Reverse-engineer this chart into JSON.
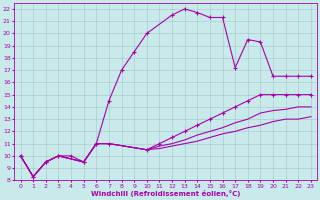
{
  "xlabel": "Windchill (Refroidissement éolien,°C)",
  "bg_color": "#c8eaea",
  "line_color": "#aa00aa",
  "grid_color": "#aacccc",
  "xlim": [
    -0.5,
    23.5
  ],
  "ylim": [
    8,
    22.5
  ],
  "xticks": [
    0,
    1,
    2,
    3,
    4,
    5,
    6,
    7,
    8,
    9,
    10,
    11,
    12,
    13,
    14,
    15,
    16,
    17,
    18,
    19,
    20,
    21,
    22,
    23
  ],
  "yticks": [
    8,
    9,
    10,
    11,
    12,
    13,
    14,
    15,
    16,
    17,
    18,
    19,
    20,
    21,
    22
  ],
  "lines": [
    {
      "x": [
        0,
        1,
        2,
        3,
        4,
        5,
        6,
        7,
        8,
        9,
        10,
        12,
        13,
        14,
        15,
        16,
        17,
        18,
        19,
        20,
        21,
        22,
        23
      ],
      "y": [
        10,
        8.3,
        9.5,
        10,
        10,
        9.5,
        11,
        14.5,
        17,
        18.5,
        20,
        21.5,
        22,
        21.7,
        21.3,
        21.3,
        17.2,
        19.5,
        19.3,
        16.5,
        16.5,
        16.5,
        16.5
      ],
      "marker": true
    },
    {
      "x": [
        0,
        1,
        2,
        3,
        5,
        6,
        7,
        10,
        11,
        12,
        13,
        14,
        15,
        16,
        17,
        18,
        19,
        20,
        21,
        22,
        23
      ],
      "y": [
        10,
        8.3,
        9.5,
        10,
        9.5,
        11,
        11,
        10.5,
        11,
        11.5,
        12,
        12.5,
        13,
        13.5,
        14,
        14.5,
        15,
        15,
        15,
        15,
        15
      ],
      "marker": true
    },
    {
      "x": [
        0,
        1,
        2,
        3,
        5,
        6,
        7,
        10,
        11,
        12,
        13,
        14,
        15,
        16,
        17,
        18,
        19,
        20,
        21,
        22,
        23
      ],
      "y": [
        10,
        8.3,
        9.5,
        10,
        9.5,
        11,
        11,
        10.5,
        10.8,
        11,
        11.3,
        11.7,
        12,
        12.3,
        12.7,
        13,
        13.5,
        13.7,
        13.8,
        14,
        14
      ],
      "marker": false
    },
    {
      "x": [
        0,
        1,
        2,
        3,
        5,
        6,
        7,
        10,
        11,
        12,
        13,
        14,
        15,
        16,
        17,
        18,
        19,
        20,
        21,
        22,
        23
      ],
      "y": [
        10,
        8.3,
        9.5,
        10,
        9.5,
        11,
        11,
        10.5,
        10.6,
        10.8,
        11,
        11.2,
        11.5,
        11.8,
        12,
        12.3,
        12.5,
        12.8,
        13,
        13,
        13.2
      ],
      "marker": false
    }
  ]
}
